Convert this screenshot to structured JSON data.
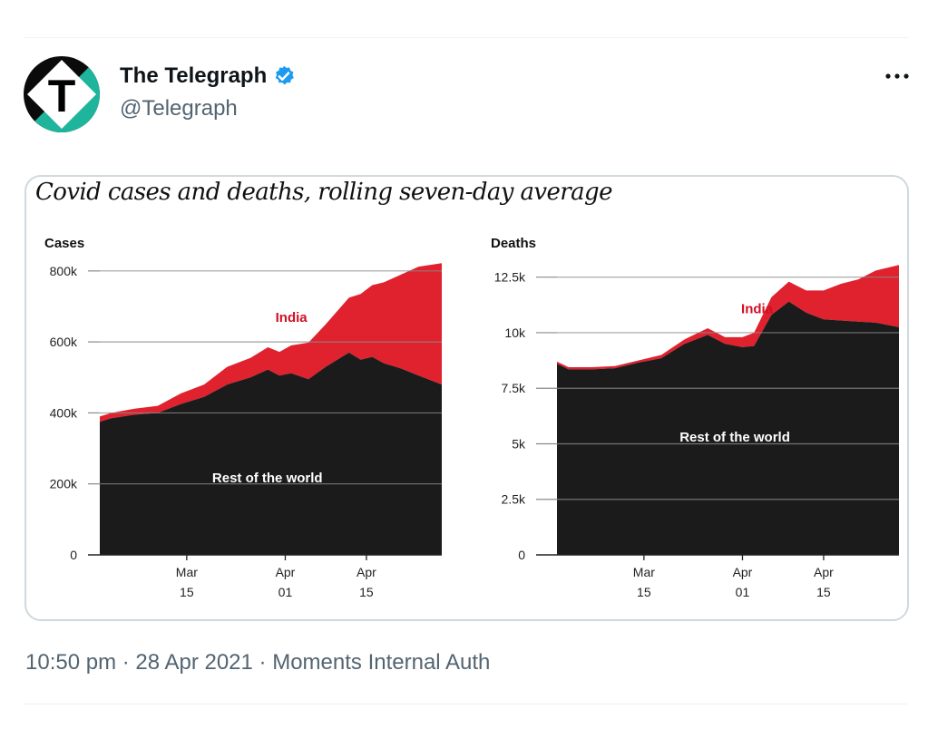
{
  "tweet": {
    "display_name": "The Telegraph",
    "handle": "@Telegraph",
    "verified": true,
    "avatar_letter": "T",
    "more_icon": "more-horizontal-icon",
    "colors": {
      "verified": "#1d9bf0",
      "secondary_text": "#536471",
      "border": "#cfd9de",
      "avatar_teal": "#1fb59c"
    }
  },
  "footer": {
    "time": "10:50 pm",
    "separator": "·",
    "date": "28 Apr 2021",
    "source": "Moments Internal Auth"
  },
  "media": {
    "title": "Covid cases and deaths, rolling seven-day average",
    "colors": {
      "india": "#e0212e",
      "rest": "#1b1b1b",
      "label_red": "#d10f23"
    }
  },
  "chart_data": [
    {
      "type": "area",
      "stacked": true,
      "title": "Cases",
      "ylim": [
        0,
        820000
      ],
      "y_ticks": [
        0,
        200000,
        400000,
        600000,
        800000
      ],
      "y_tick_labels": [
        "0",
        "200k",
        "400k",
        "600k",
        "800k"
      ],
      "x_ticks": [
        {
          "x": "2021-03-15",
          "line1": "Mar",
          "line2": "15"
        },
        {
          "x": "2021-04-01",
          "line1": "Apr",
          "line2": "01"
        },
        {
          "x": "2021-04-15",
          "line1": "Apr",
          "line2": "15"
        }
      ],
      "x_range": [
        "2021-02-28",
        "2021-04-28"
      ],
      "series": [
        {
          "name": "Rest of the world",
          "color": "#1b1b1b",
          "points": [
            [
              "2021-02-28",
              375000
            ],
            [
              "2021-03-02",
              385000
            ],
            [
              "2021-03-06",
              395000
            ],
            [
              "2021-03-10",
              400000
            ],
            [
              "2021-03-14",
              425000
            ],
            [
              "2021-03-18",
              445000
            ],
            [
              "2021-03-22",
              480000
            ],
            [
              "2021-03-26",
              500000
            ],
            [
              "2021-03-29",
              522000
            ],
            [
              "2021-03-31",
              505000
            ],
            [
              "2021-04-02",
              512000
            ],
            [
              "2021-04-05",
              495000
            ],
            [
              "2021-04-08",
              530000
            ],
            [
              "2021-04-12",
              570000
            ],
            [
              "2021-04-14",
              550000
            ],
            [
              "2021-04-16",
              558000
            ],
            [
              "2021-04-18",
              540000
            ],
            [
              "2021-04-21",
              525000
            ],
            [
              "2021-04-24",
              505000
            ],
            [
              "2021-04-28",
              480000
            ]
          ]
        },
        {
          "name": "India",
          "color": "#e0212e",
          "points": [
            [
              "2021-02-28",
              390000
            ],
            [
              "2021-03-02",
              400000
            ],
            [
              "2021-03-06",
              412000
            ],
            [
              "2021-03-10",
              420000
            ],
            [
              "2021-03-14",
              455000
            ],
            [
              "2021-03-18",
              480000
            ],
            [
              "2021-03-22",
              530000
            ],
            [
              "2021-03-26",
              555000
            ],
            [
              "2021-03-29",
              585000
            ],
            [
              "2021-03-31",
              572000
            ],
            [
              "2021-04-02",
              590000
            ],
            [
              "2021-04-05",
              598000
            ],
            [
              "2021-04-08",
              650000
            ],
            [
              "2021-04-12",
              725000
            ],
            [
              "2021-04-14",
              735000
            ],
            [
              "2021-04-16",
              760000
            ],
            [
              "2021-04-18",
              768000
            ],
            [
              "2021-04-21",
              790000
            ],
            [
              "2021-04-24",
              812000
            ],
            [
              "2021-04-28",
              822000
            ]
          ]
        }
      ],
      "annotations": [
        {
          "text": "India",
          "series": "India"
        },
        {
          "text": "Rest of the world",
          "series": "Rest of the world"
        }
      ]
    },
    {
      "type": "area",
      "stacked": true,
      "title": "Deaths",
      "ylim": [
        0,
        13100
      ],
      "y_ticks": [
        0,
        2500,
        5000,
        7500,
        10000,
        12500
      ],
      "y_tick_labels": [
        "0",
        "2.5k",
        "5k",
        "7.5k",
        "10k",
        "12.5k"
      ],
      "x_ticks": [
        {
          "x": "2021-03-15",
          "line1": "Mar",
          "line2": "15"
        },
        {
          "x": "2021-04-01",
          "line1": "Apr",
          "line2": "01"
        },
        {
          "x": "2021-04-15",
          "line1": "Apr",
          "line2": "15"
        }
      ],
      "x_range": [
        "2021-02-28",
        "2021-04-28"
      ],
      "series": [
        {
          "name": "Rest of the world",
          "color": "#1b1b1b",
          "points": [
            [
              "2021-02-28",
              8600
            ],
            [
              "2021-03-02",
              8350
            ],
            [
              "2021-03-06",
              8350
            ],
            [
              "2021-03-10",
              8400
            ],
            [
              "2021-03-14",
              8650
            ],
            [
              "2021-03-18",
              8850
            ],
            [
              "2021-03-22",
              9500
            ],
            [
              "2021-03-26",
              9900
            ],
            [
              "2021-03-29",
              9500
            ],
            [
              "2021-04-01",
              9350
            ],
            [
              "2021-04-03",
              9400
            ],
            [
              "2021-04-06",
              10800
            ],
            [
              "2021-04-09",
              11400
            ],
            [
              "2021-04-12",
              10900
            ],
            [
              "2021-04-15",
              10600
            ],
            [
              "2021-04-18",
              10550
            ],
            [
              "2021-04-21",
              10500
            ],
            [
              "2021-04-24",
              10450
            ],
            [
              "2021-04-28",
              10250
            ]
          ]
        },
        {
          "name": "India",
          "color": "#e0212e",
          "points": [
            [
              "2021-02-28",
              8700
            ],
            [
              "2021-03-02",
              8450
            ],
            [
              "2021-03-06",
              8450
            ],
            [
              "2021-03-10",
              8500
            ],
            [
              "2021-03-14",
              8750
            ],
            [
              "2021-03-18",
              9000
            ],
            [
              "2021-03-22",
              9700
            ],
            [
              "2021-03-26",
              10200
            ],
            [
              "2021-03-29",
              9800
            ],
            [
              "2021-04-01",
              9800
            ],
            [
              "2021-04-03",
              10000
            ],
            [
              "2021-04-06",
              11600
            ],
            [
              "2021-04-09",
              12300
            ],
            [
              "2021-04-12",
              11900
            ],
            [
              "2021-04-15",
              11900
            ],
            [
              "2021-04-18",
              12200
            ],
            [
              "2021-04-21",
              12400
            ],
            [
              "2021-04-24",
              12800
            ],
            [
              "2021-04-28",
              13050
            ]
          ]
        }
      ],
      "annotations": [
        {
          "text": "India",
          "series": "India"
        },
        {
          "text": "Rest of the world",
          "series": "Rest of the world"
        }
      ]
    }
  ]
}
